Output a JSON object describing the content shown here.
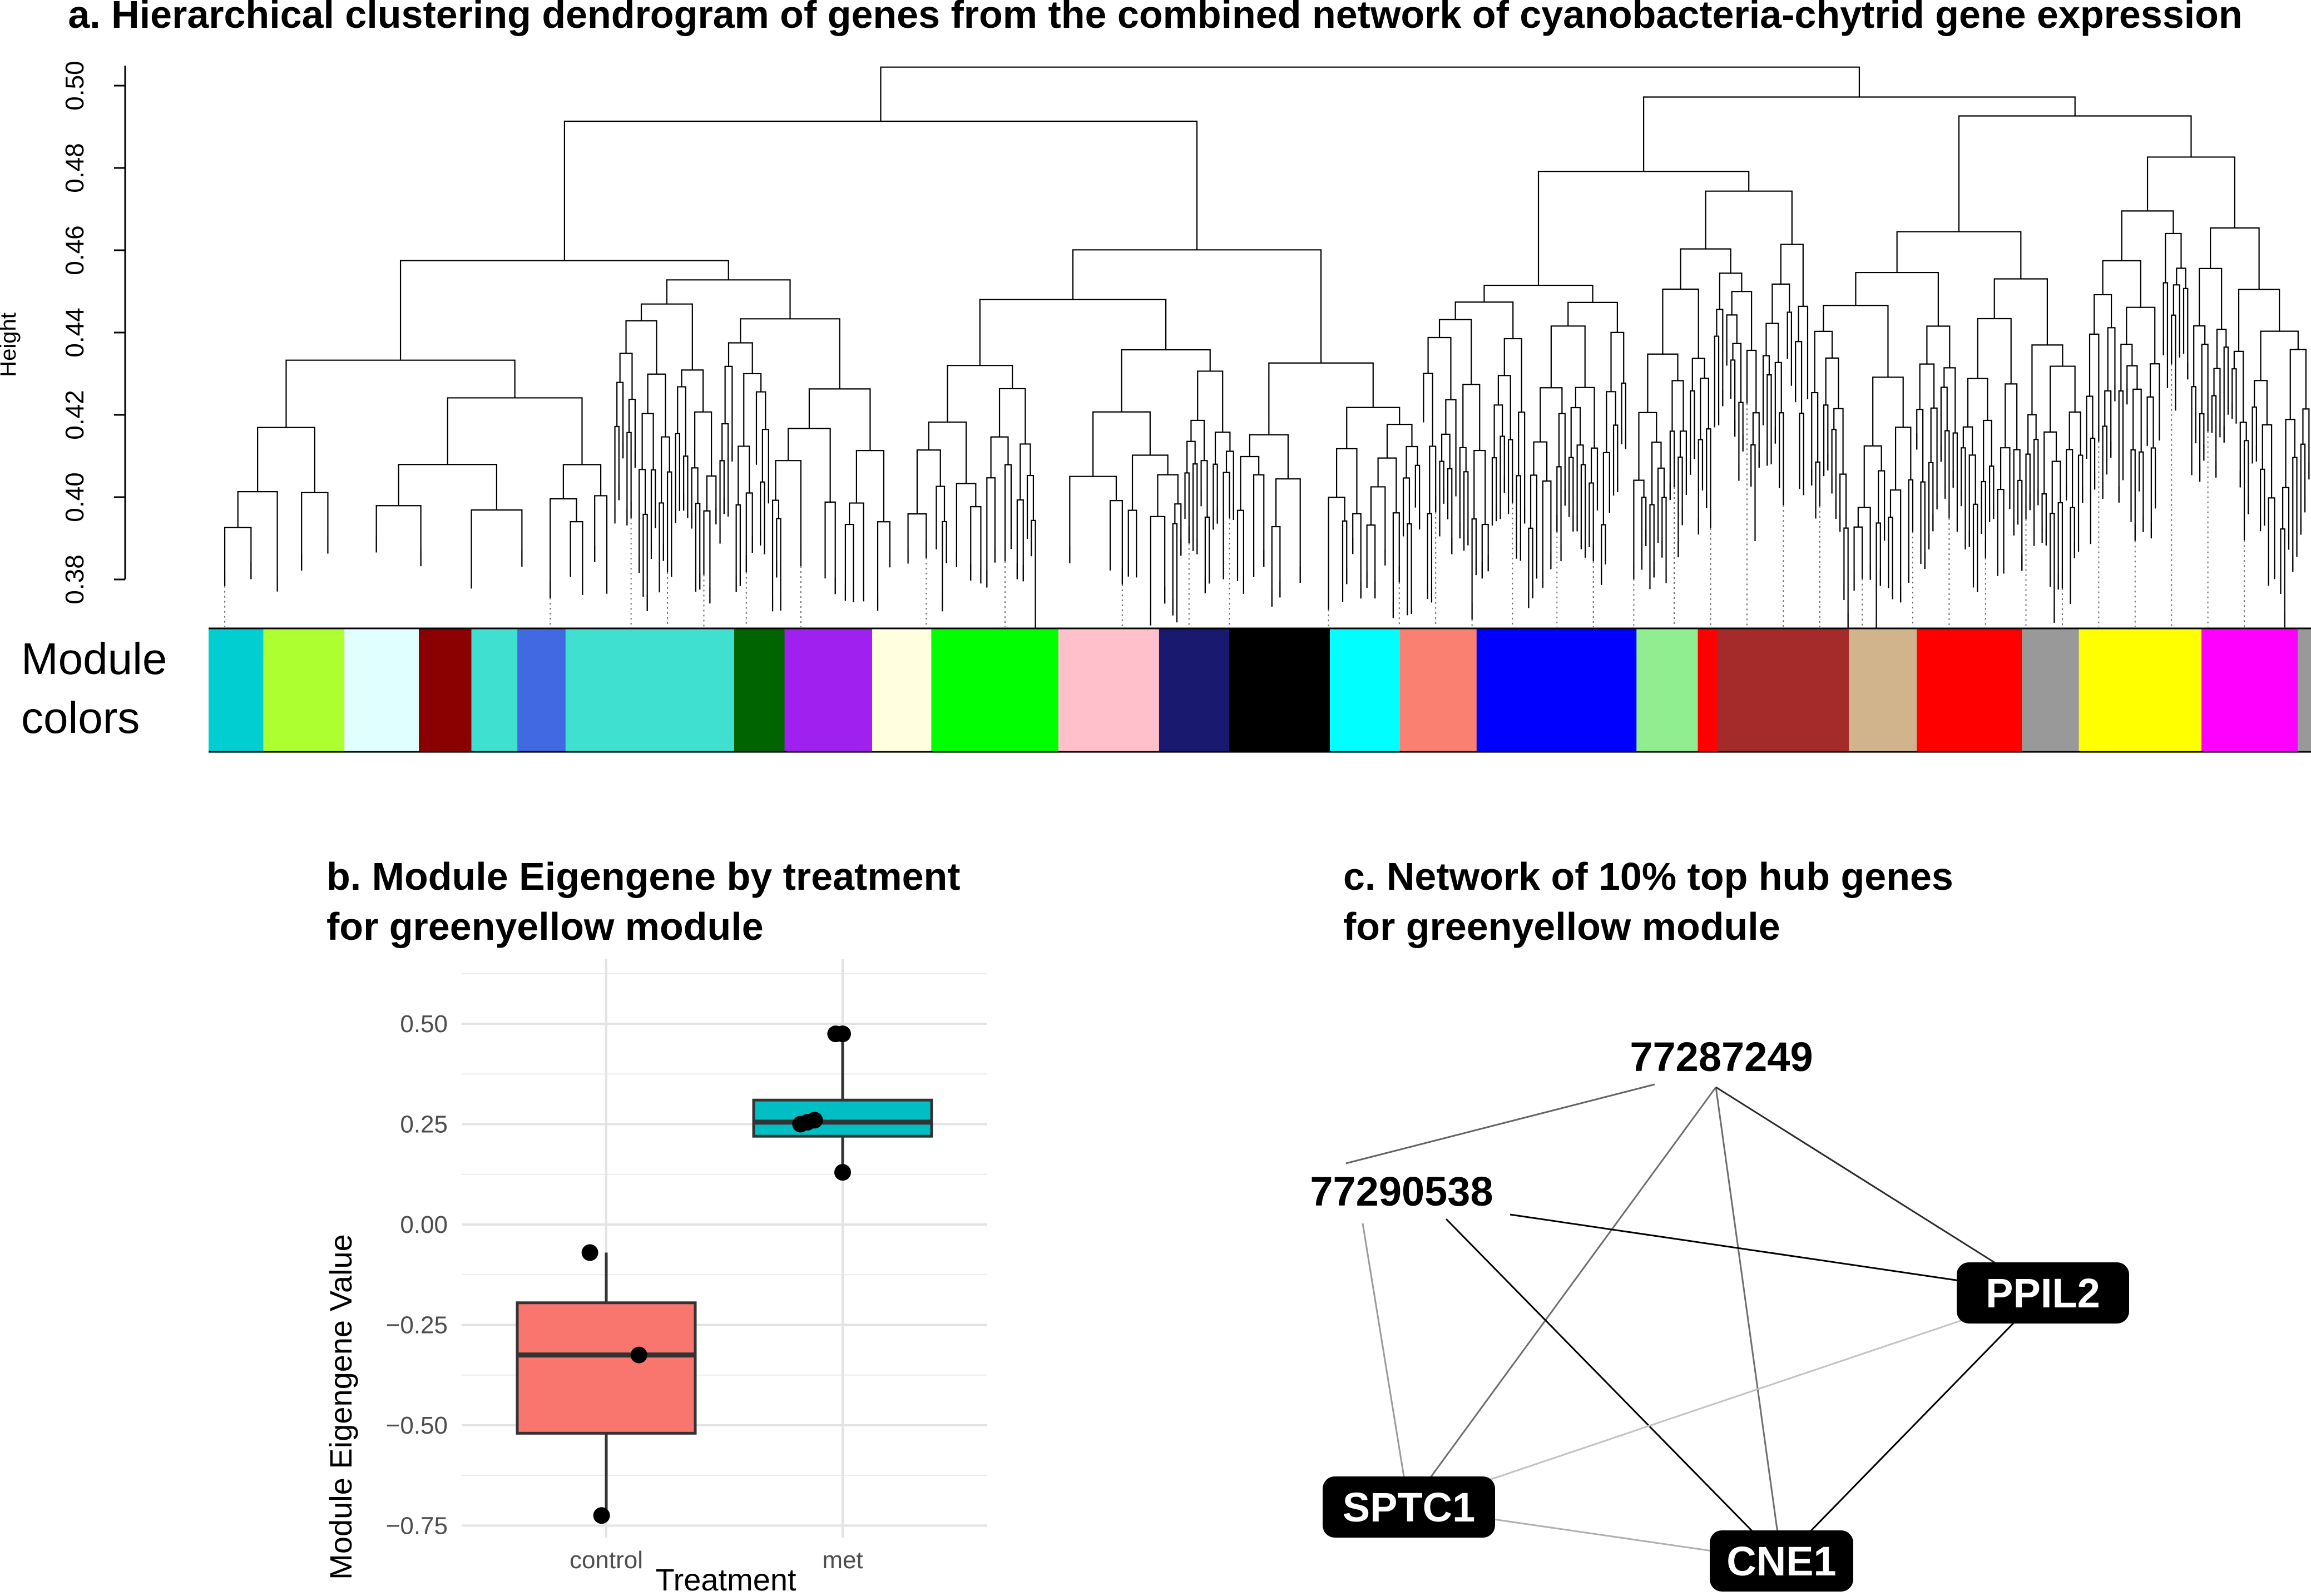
{
  "chart_data": [
    {
      "panel": "a",
      "type": "dendrogram",
      "title": "a. Hierarchical clustering dendrogram of genes from the combined network of cyanobacteria-chytrid gene expression",
      "ylabel": "Height",
      "yticks": [
        "0.38",
        "0.40",
        "0.42",
        "0.44",
        "0.46",
        "0.48",
        "0.50"
      ],
      "ylim": [
        0.38,
        0.51
      ],
      "color_bar_label": [
        "Module",
        "colors"
      ],
      "module_colors": [
        {
          "color": "#00CED1",
          "w": 0.025
        },
        {
          "color": "#ADFF2F",
          "w": 0.037
        },
        {
          "color": "#E0FFFF",
          "w": 0.034
        },
        {
          "color": "#8B0000",
          "w": 0.024
        },
        {
          "color": "#40E0D0",
          "w": 0.021
        },
        {
          "color": "#4169E1",
          "w": 0.022
        },
        {
          "color": "#40E0D0",
          "w": 0.077
        },
        {
          "color": "#006400",
          "w": 0.023
        },
        {
          "color": "#A020F0",
          "w": 0.04
        },
        {
          "color": "#FFFFE0",
          "w": 0.027
        },
        {
          "color": "#00FF00",
          "w": 0.058
        },
        {
          "color": "#FFC0CB",
          "w": 0.046
        },
        {
          "color": "#191970",
          "w": 0.032
        },
        {
          "color": "#000000",
          "w": 0.046
        },
        {
          "color": "#00FFFF",
          "w": 0.032
        },
        {
          "color": "#FA8072",
          "w": 0.035
        },
        {
          "color": "#0000FF",
          "w": 0.073
        },
        {
          "color": "#90EE90",
          "w": 0.028
        },
        {
          "color": "#FF0000",
          "w": 0.009
        },
        {
          "color": "#A52A2A",
          "w": 0.06
        },
        {
          "color": "#D2B48C",
          "w": 0.031
        },
        {
          "color": "#FF0000",
          "w": 0.048
        },
        {
          "color": "#999999",
          "w": 0.026
        },
        {
          "color": "#FFFF00",
          "w": 0.056
        },
        {
          "color": "#FF00FF",
          "w": 0.044
        },
        {
          "color": "#999999",
          "w": 0.006
        }
      ]
    },
    {
      "panel": "b",
      "type": "box",
      "title": [
        "b. Module Eigengene by treatment",
        "for greenyellow module"
      ],
      "xlabel": "Treatment",
      "ylabel": "Module Eigengene Value",
      "ylim": [
        -0.78,
        0.55
      ],
      "yticks": [
        0.5,
        0.25,
        0.0,
        -0.25,
        -0.5,
        -0.75
      ],
      "ytick_labels": [
        "0.50",
        "0.25",
        "0.00",
        "−0.25",
        "−0.50",
        "−0.75"
      ],
      "categories": [
        "control",
        "met"
      ],
      "boxes": [
        {
          "name": "control",
          "color": "#F8766D",
          "q1": -0.52,
          "median": -0.325,
          "q3": -0.195,
          "whisker_low": -0.72,
          "whisker_high": -0.07,
          "points": [
            [
              -0.07,
              -0.07
            ],
            [
              0.14,
              -0.325
            ],
            [
              -0.02,
              -0.725
            ]
          ]
        },
        {
          "name": "met",
          "color": "#00BFC4",
          "q1": 0.22,
          "median": 0.255,
          "q3": 0.31,
          "whisker_low": 0.13,
          "whisker_high": 0.47,
          "points": [
            [
              -0.03,
              0.475
            ],
            [
              0.0,
              0.475
            ],
            [
              -0.18,
              0.25
            ],
            [
              -0.15,
              0.255
            ],
            [
              -0.12,
              0.26
            ],
            [
              0.0,
              0.13
            ]
          ]
        }
      ]
    },
    {
      "panel": "c",
      "type": "network",
      "title": [
        "c. Network of 10% top hub genes",
        "for greenyellow module"
      ],
      "nodes": [
        {
          "id": "77287249",
          "label": "77287249",
          "style": "plain"
        },
        {
          "id": "77290538",
          "label": "77290538",
          "style": "plain"
        },
        {
          "id": "PPIL2",
          "label": "PPIL2",
          "style": "boxed"
        },
        {
          "id": "SPTC1",
          "label": "SPTC1",
          "style": "boxed"
        },
        {
          "id": "CNE1",
          "label": "CNE1",
          "style": "boxed"
        }
      ],
      "edges": [
        {
          "from": "77287249",
          "to": "77290538",
          "weight": 0.55
        },
        {
          "from": "77287249",
          "to": "SPTC1",
          "weight": 0.5
        },
        {
          "from": "77287249",
          "to": "CNE1",
          "weight": 0.5
        },
        {
          "from": "77287249",
          "to": "PPIL2",
          "weight": 0.8
        },
        {
          "from": "77290538",
          "to": "PPIL2",
          "weight": 1.0
        },
        {
          "from": "77290538",
          "to": "CNE1",
          "weight": 1.0
        },
        {
          "from": "77290538",
          "to": "SPTC1",
          "weight": 0.3
        },
        {
          "from": "PPIL2",
          "to": "CNE1",
          "weight": 1.0
        },
        {
          "from": "PPIL2",
          "to": "SPTC1",
          "weight": 0.12
        },
        {
          "from": "SPTC1",
          "to": "CNE1",
          "weight": 0.2
        }
      ]
    }
  ]
}
